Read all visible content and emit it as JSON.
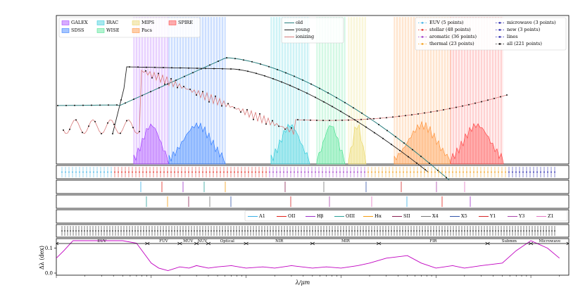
{
  "chart_data": {
    "type": "line",
    "title": "",
    "xlabel": "λ/μm",
    "ylabel": "Δλ (dex)",
    "xscale": "log",
    "grid": false,
    "filter_legend": {
      "placement": "top-left",
      "entries": [
        {
          "name": "GALEX",
          "color": "#9b30ff"
        },
        {
          "name": "SDSS",
          "color": "#1e6fff"
        },
        {
          "name": "IRAC",
          "color": "#22c8d8"
        },
        {
          "name": "WISE",
          "color": "#3ee08a"
        },
        {
          "name": "MIPS",
          "color": "#e8d35a"
        },
        {
          "name": "Pacs",
          "color": "#ff8a2a"
        },
        {
          "name": "SPIRE",
          "color": "#ff3333"
        }
      ]
    },
    "sed_legend": {
      "placement": "top-center",
      "entries": [
        {
          "name": "old",
          "color": "#2a7f7f"
        },
        {
          "name": "young",
          "color": "#222222"
        },
        {
          "name": "ionizing",
          "color": "#d97a7a"
        }
      ]
    },
    "points_legend": {
      "placement": "top-right",
      "entries": [
        {
          "name": "EUV (5 points)",
          "color": "#3ab0e6"
        },
        {
          "name": "stellar (48 points)",
          "color": "#e2231a"
        },
        {
          "name": "aromatic (36 points)",
          "color": "#9b30c8"
        },
        {
          "name": "thermal (23 points)",
          "color": "#f39c12"
        },
        {
          "name": "microwave (3 points)",
          "color": "#1a1aa8"
        },
        {
          "name": "new (3 points)",
          "color": "#1a1aa8"
        },
        {
          "name": "lines",
          "color": "#1a1aa8"
        },
        {
          "name": "all (221 points)",
          "color": "#000000"
        }
      ]
    },
    "lines_legend": {
      "placement": "right",
      "entries": [
        {
          "name": "A1",
          "color": "#3ab0e6"
        },
        {
          "name": "OII",
          "color": "#e2231a"
        },
        {
          "name": "Hβ",
          "color": "#9b30c8"
        },
        {
          "name": "OIII",
          "color": "#2aa198"
        },
        {
          "name": "Hα",
          "color": "#f39c12"
        },
        {
          "name": "SII",
          "color": "#8b2252"
        },
        {
          "name": "X4",
          "color": "#777777"
        },
        {
          "name": "X5",
          "color": "#3355aa"
        },
        {
          "name": "Y1",
          "color": "#d62728"
        },
        {
          "name": "Y3",
          "color": "#aa44aa"
        },
        {
          "name": "Z1",
          "color": "#e377c2"
        }
      ]
    },
    "regions": [
      {
        "name": "EUV"
      },
      {
        "name": "FUV"
      },
      {
        "name": "MUV"
      },
      {
        "name": "NUV"
      },
      {
        "name": "Optical"
      },
      {
        "name": "NIR"
      },
      {
        "name": "MIR"
      },
      {
        "name": "FIR"
      },
      {
        "name": "Submm"
      },
      {
        "name": "Microwave"
      }
    ],
    "yticks_bottom": [
      "0.1",
      "0.0"
    ],
    "ylim_bottom": [
      0,
      0.13
    ],
    "resolution_curve": {
      "name": "Δλ",
      "color": "#c000c0",
      "x": [
        0.01,
        0.012,
        0.015,
        0.02,
        0.03,
        0.05,
        0.07,
        0.1,
        0.12,
        0.15,
        0.2,
        0.25,
        0.3,
        0.4,
        0.5,
        0.7,
        1.0,
        1.5,
        2,
        3,
        5,
        7,
        10,
        15,
        20,
        30,
        50,
        70,
        100,
        150,
        200,
        300,
        500,
        700,
        1000,
        1500,
        2000
      ],
      "y": [
        0.06,
        0.09,
        0.13,
        0.13,
        0.13,
        0.13,
        0.12,
        0.04,
        0.02,
        0.01,
        0.025,
        0.02,
        0.03,
        0.02,
        0.025,
        0.03,
        0.02,
        0.025,
        0.02,
        0.03,
        0.02,
        0.025,
        0.02,
        0.03,
        0.04,
        0.06,
        0.07,
        0.04,
        0.02,
        0.03,
        0.02,
        0.03,
        0.04,
        0.09,
        0.13,
        0.1,
        0.06
      ]
    }
  }
}
